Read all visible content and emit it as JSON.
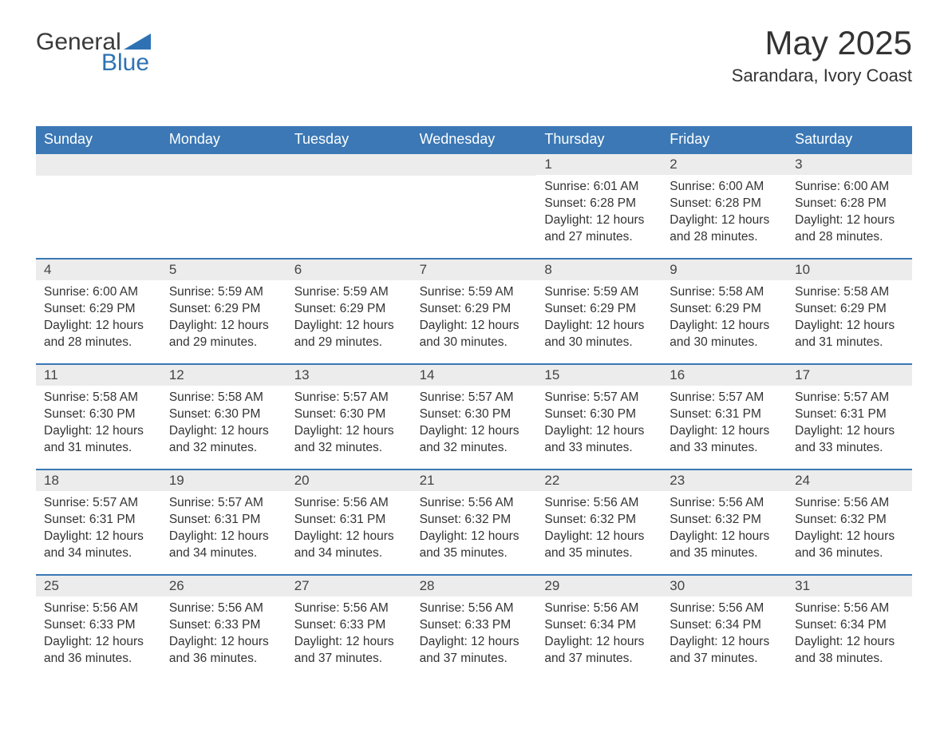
{
  "colors": {
    "header_bg": "#3b78b5",
    "header_text": "#ffffff",
    "day_num_bg": "#ececec",
    "week_border": "#3b78b5",
    "body_text": "#333333",
    "logo_blue": "#2f72b3"
  },
  "logo": {
    "text_general": "General",
    "text_blue": "Blue"
  },
  "title": "May 2025",
  "subtitle": "Sarandara, Ivory Coast",
  "weekdays": [
    "Sunday",
    "Monday",
    "Tuesday",
    "Wednesday",
    "Thursday",
    "Friday",
    "Saturday"
  ],
  "weeks": [
    [
      {
        "day": "",
        "lines": []
      },
      {
        "day": "",
        "lines": []
      },
      {
        "day": "",
        "lines": []
      },
      {
        "day": "",
        "lines": []
      },
      {
        "day": "1",
        "lines": [
          "Sunrise: 6:01 AM",
          "Sunset: 6:28 PM",
          "Daylight: 12 hours and 27 minutes."
        ]
      },
      {
        "day": "2",
        "lines": [
          "Sunrise: 6:00 AM",
          "Sunset: 6:28 PM",
          "Daylight: 12 hours and 28 minutes."
        ]
      },
      {
        "day": "3",
        "lines": [
          "Sunrise: 6:00 AM",
          "Sunset: 6:28 PM",
          "Daylight: 12 hours and 28 minutes."
        ]
      }
    ],
    [
      {
        "day": "4",
        "lines": [
          "Sunrise: 6:00 AM",
          "Sunset: 6:29 PM",
          "Daylight: 12 hours and 28 minutes."
        ]
      },
      {
        "day": "5",
        "lines": [
          "Sunrise: 5:59 AM",
          "Sunset: 6:29 PM",
          "Daylight: 12 hours and 29 minutes."
        ]
      },
      {
        "day": "6",
        "lines": [
          "Sunrise: 5:59 AM",
          "Sunset: 6:29 PM",
          "Daylight: 12 hours and 29 minutes."
        ]
      },
      {
        "day": "7",
        "lines": [
          "Sunrise: 5:59 AM",
          "Sunset: 6:29 PM",
          "Daylight: 12 hours and 30 minutes."
        ]
      },
      {
        "day": "8",
        "lines": [
          "Sunrise: 5:59 AM",
          "Sunset: 6:29 PM",
          "Daylight: 12 hours and 30 minutes."
        ]
      },
      {
        "day": "9",
        "lines": [
          "Sunrise: 5:58 AM",
          "Sunset: 6:29 PM",
          "Daylight: 12 hours and 30 minutes."
        ]
      },
      {
        "day": "10",
        "lines": [
          "Sunrise: 5:58 AM",
          "Sunset: 6:29 PM",
          "Daylight: 12 hours and 31 minutes."
        ]
      }
    ],
    [
      {
        "day": "11",
        "lines": [
          "Sunrise: 5:58 AM",
          "Sunset: 6:30 PM",
          "Daylight: 12 hours and 31 minutes."
        ]
      },
      {
        "day": "12",
        "lines": [
          "Sunrise: 5:58 AM",
          "Sunset: 6:30 PM",
          "Daylight: 12 hours and 32 minutes."
        ]
      },
      {
        "day": "13",
        "lines": [
          "Sunrise: 5:57 AM",
          "Sunset: 6:30 PM",
          "Daylight: 12 hours and 32 minutes."
        ]
      },
      {
        "day": "14",
        "lines": [
          "Sunrise: 5:57 AM",
          "Sunset: 6:30 PM",
          "Daylight: 12 hours and 32 minutes."
        ]
      },
      {
        "day": "15",
        "lines": [
          "Sunrise: 5:57 AM",
          "Sunset: 6:30 PM",
          "Daylight: 12 hours and 33 minutes."
        ]
      },
      {
        "day": "16",
        "lines": [
          "Sunrise: 5:57 AM",
          "Sunset: 6:31 PM",
          "Daylight: 12 hours and 33 minutes."
        ]
      },
      {
        "day": "17",
        "lines": [
          "Sunrise: 5:57 AM",
          "Sunset: 6:31 PM",
          "Daylight: 12 hours and 33 minutes."
        ]
      }
    ],
    [
      {
        "day": "18",
        "lines": [
          "Sunrise: 5:57 AM",
          "Sunset: 6:31 PM",
          "Daylight: 12 hours and 34 minutes."
        ]
      },
      {
        "day": "19",
        "lines": [
          "Sunrise: 5:57 AM",
          "Sunset: 6:31 PM",
          "Daylight: 12 hours and 34 minutes."
        ]
      },
      {
        "day": "20",
        "lines": [
          "Sunrise: 5:56 AM",
          "Sunset: 6:31 PM",
          "Daylight: 12 hours and 34 minutes."
        ]
      },
      {
        "day": "21",
        "lines": [
          "Sunrise: 5:56 AM",
          "Sunset: 6:32 PM",
          "Daylight: 12 hours and 35 minutes."
        ]
      },
      {
        "day": "22",
        "lines": [
          "Sunrise: 5:56 AM",
          "Sunset: 6:32 PM",
          "Daylight: 12 hours and 35 minutes."
        ]
      },
      {
        "day": "23",
        "lines": [
          "Sunrise: 5:56 AM",
          "Sunset: 6:32 PM",
          "Daylight: 12 hours and 35 minutes."
        ]
      },
      {
        "day": "24",
        "lines": [
          "Sunrise: 5:56 AM",
          "Sunset: 6:32 PM",
          "Daylight: 12 hours and 36 minutes."
        ]
      }
    ],
    [
      {
        "day": "25",
        "lines": [
          "Sunrise: 5:56 AM",
          "Sunset: 6:33 PM",
          "Daylight: 12 hours and 36 minutes."
        ]
      },
      {
        "day": "26",
        "lines": [
          "Sunrise: 5:56 AM",
          "Sunset: 6:33 PM",
          "Daylight: 12 hours and 36 minutes."
        ]
      },
      {
        "day": "27",
        "lines": [
          "Sunrise: 5:56 AM",
          "Sunset: 6:33 PM",
          "Daylight: 12 hours and 37 minutes."
        ]
      },
      {
        "day": "28",
        "lines": [
          "Sunrise: 5:56 AM",
          "Sunset: 6:33 PM",
          "Daylight: 12 hours and 37 minutes."
        ]
      },
      {
        "day": "29",
        "lines": [
          "Sunrise: 5:56 AM",
          "Sunset: 6:34 PM",
          "Daylight: 12 hours and 37 minutes."
        ]
      },
      {
        "day": "30",
        "lines": [
          "Sunrise: 5:56 AM",
          "Sunset: 6:34 PM",
          "Daylight: 12 hours and 37 minutes."
        ]
      },
      {
        "day": "31",
        "lines": [
          "Sunrise: 5:56 AM",
          "Sunset: 6:34 PM",
          "Daylight: 12 hours and 38 minutes."
        ]
      }
    ]
  ]
}
